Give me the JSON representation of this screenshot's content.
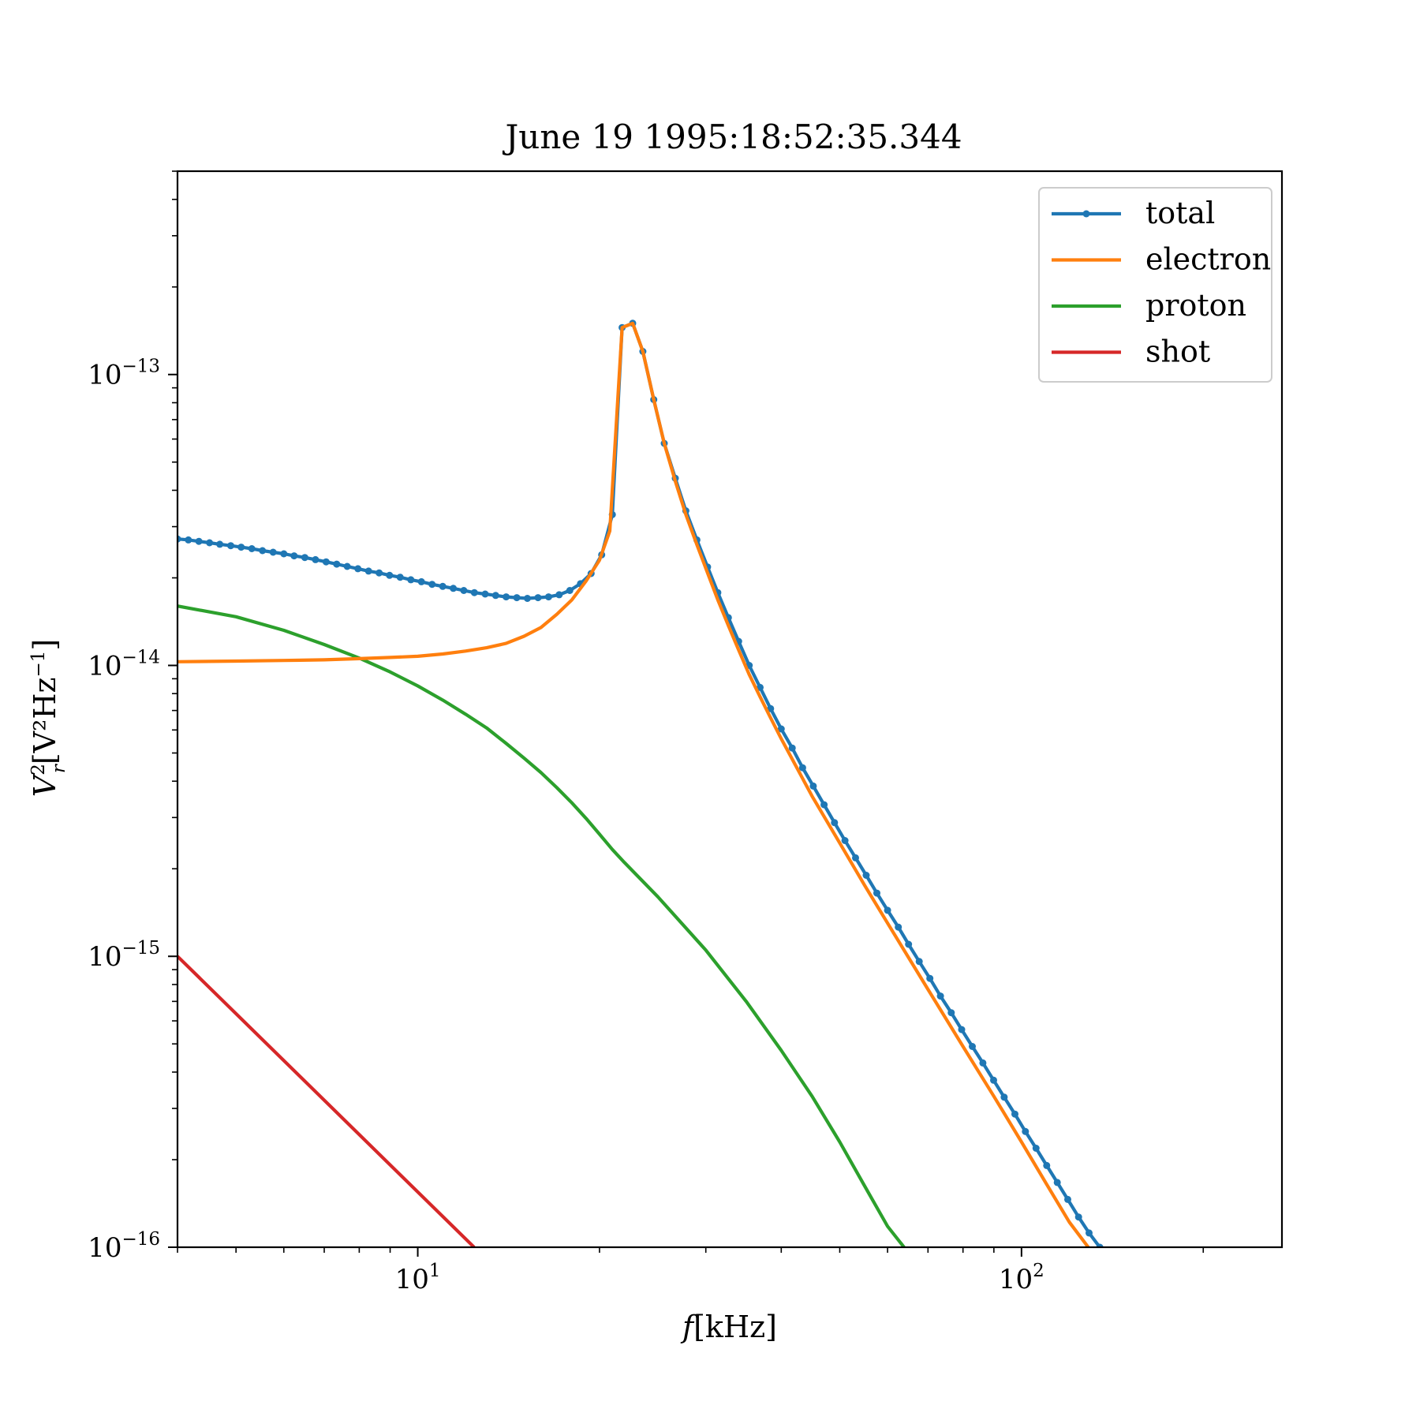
{
  "chart_data": {
    "type": "line",
    "title": "June 19 1995:18:52:35.344",
    "xlabel": {
      "prefix": "f",
      "body": "[kHz]"
    },
    "ylabel": {
      "base": "V",
      "sub": "r",
      "sup": "2",
      "body": "[V²Hz",
      "body_sup": "−1",
      "close": "]"
    },
    "xscale": "log",
    "yscale": "log",
    "xlim": [
      4,
      270
    ],
    "ylim": [
      1e-16,
      5e-13
    ],
    "xticks": [
      {
        "value": 10,
        "base": "10",
        "exp": "1"
      },
      {
        "value": 100,
        "base": "10",
        "exp": "2"
      }
    ],
    "yticks": [
      {
        "value": 1e-16,
        "base": "10",
        "exp": "−16"
      },
      {
        "value": 1e-15,
        "base": "10",
        "exp": "−15"
      },
      {
        "value": 1e-14,
        "base": "10",
        "exp": "−14"
      },
      {
        "value": 1e-13,
        "base": "10",
        "exp": "−13"
      }
    ],
    "legend_position": "upper right",
    "grid": false,
    "series": [
      {
        "name": "total",
        "color": "#1f77b4",
        "marker": "dot",
        "points": [
          [
            4.0,
            2.72e-14
          ],
          [
            4.17,
            2.7e-14
          ],
          [
            4.34,
            2.67e-14
          ],
          [
            4.52,
            2.64e-14
          ],
          [
            4.7,
            2.61e-14
          ],
          [
            4.9,
            2.58e-14
          ],
          [
            5.1,
            2.55e-14
          ],
          [
            5.31,
            2.52e-14
          ],
          [
            5.53,
            2.48e-14
          ],
          [
            5.76,
            2.45e-14
          ],
          [
            6.0,
            2.42e-14
          ],
          [
            6.24,
            2.38e-14
          ],
          [
            6.5,
            2.35e-14
          ],
          [
            6.77,
            2.31e-14
          ],
          [
            7.05,
            2.27e-14
          ],
          [
            7.34,
            2.23e-14
          ],
          [
            7.64,
            2.19e-14
          ],
          [
            7.96,
            2.15e-14
          ],
          [
            8.29,
            2.11e-14
          ],
          [
            8.63,
            2.08e-14
          ],
          [
            8.98,
            2.04e-14
          ],
          [
            9.35,
            2.01e-14
          ],
          [
            9.74,
            1.97e-14
          ],
          [
            10.14,
            1.94e-14
          ],
          [
            10.56,
            1.9e-14
          ],
          [
            11.0,
            1.87e-14
          ],
          [
            11.45,
            1.84e-14
          ],
          [
            11.92,
            1.81e-14
          ],
          [
            12.41,
            1.78e-14
          ],
          [
            12.93,
            1.76e-14
          ],
          [
            13.46,
            1.74e-14
          ],
          [
            14.01,
            1.72e-14
          ],
          [
            14.59,
            1.71e-14
          ],
          [
            15.19,
            1.7e-14
          ],
          [
            15.82,
            1.71e-14
          ],
          [
            16.47,
            1.72e-14
          ],
          [
            17.15,
            1.75e-14
          ],
          [
            17.86,
            1.81e-14
          ],
          [
            18.6,
            1.91e-14
          ],
          [
            19.37,
            2.07e-14
          ],
          [
            20.17,
            2.4e-14
          ],
          [
            21.0,
            3.3e-14
          ],
          [
            21.8,
            1.45e-13
          ],
          [
            22.7,
            1.5e-13
          ],
          [
            23.6,
            1.2e-13
          ],
          [
            24.6,
            8.2e-14
          ],
          [
            25.6,
            5.8e-14
          ],
          [
            26.7,
            4.4e-14
          ],
          [
            27.8,
            3.4e-14
          ],
          [
            29.0,
            2.7e-14
          ],
          [
            30.2,
            2.18e-14
          ],
          [
            31.4,
            1.78e-14
          ],
          [
            32.7,
            1.46e-14
          ],
          [
            34.0,
            1.21e-14
          ],
          [
            35.4,
            1e-14
          ],
          [
            36.9,
            8.4e-15
          ],
          [
            38.4,
            7.1e-15
          ],
          [
            40.0,
            6.05e-15
          ],
          [
            41.7,
            5.2e-15
          ],
          [
            43.4,
            4.45e-15
          ],
          [
            45.2,
            3.85e-15
          ],
          [
            47.1,
            3.32e-15
          ],
          [
            49.0,
            2.88e-15
          ],
          [
            51.0,
            2.5e-15
          ],
          [
            53.1,
            2.18e-15
          ],
          [
            55.3,
            1.9e-15
          ],
          [
            57.6,
            1.65e-15
          ],
          [
            60.0,
            1.44e-15
          ],
          [
            62.5,
            1.26e-15
          ],
          [
            65.0,
            1.1e-15
          ],
          [
            67.7,
            9.6e-16
          ],
          [
            70.5,
            8.4e-16
          ],
          [
            73.4,
            7.3e-16
          ],
          [
            76.5,
            6.4e-16
          ],
          [
            79.6,
            5.6e-16
          ],
          [
            82.9,
            4.9e-16
          ],
          [
            86.3,
            4.3e-16
          ],
          [
            89.9,
            3.75e-16
          ],
          [
            93.6,
            3.28e-16
          ],
          [
            97.5,
            2.87e-16
          ],
          [
            101.5,
            2.5e-16
          ],
          [
            105.7,
            2.19e-16
          ],
          [
            110.1,
            1.91e-16
          ],
          [
            114.6,
            1.67e-16
          ],
          [
            119.3,
            1.46e-16
          ],
          [
            124.3,
            1.27e-16
          ],
          [
            129.4,
            1.12e-16
          ],
          [
            134.8,
            1e-16
          ]
        ]
      },
      {
        "name": "electron",
        "color": "#ff7f0e",
        "marker": "none",
        "points": [
          [
            4.0,
            1.03e-14
          ],
          [
            5.0,
            1.035e-14
          ],
          [
            6.0,
            1.04e-14
          ],
          [
            7.0,
            1.045e-14
          ],
          [
            8.0,
            1.055e-14
          ],
          [
            9.0,
            1.065e-14
          ],
          [
            10.0,
            1.075e-14
          ],
          [
            11.0,
            1.095e-14
          ],
          [
            12.0,
            1.12e-14
          ],
          [
            13.0,
            1.15e-14
          ],
          [
            14.0,
            1.19e-14
          ],
          [
            15.0,
            1.26e-14
          ],
          [
            16.0,
            1.35e-14
          ],
          [
            17.0,
            1.5e-14
          ],
          [
            18.0,
            1.68e-14
          ],
          [
            19.0,
            1.95e-14
          ],
          [
            20.0,
            2.3e-14
          ],
          [
            20.8,
            2.9e-14
          ],
          [
            21.8,
            1.45e-13
          ],
          [
            22.7,
            1.5e-13
          ],
          [
            23.6,
            1.2e-13
          ],
          [
            24.6,
            8.2e-14
          ],
          [
            25.6,
            5.8e-14
          ],
          [
            26.7,
            4.3e-14
          ],
          [
            27.8,
            3.3e-14
          ],
          [
            29.0,
            2.6e-14
          ],
          [
            30.2,
            2.08e-14
          ],
          [
            31.4,
            1.68e-14
          ],
          [
            32.7,
            1.37e-14
          ],
          [
            34.0,
            1.13e-14
          ],
          [
            35.4,
            9.3e-15
          ],
          [
            36.9,
            7.8e-15
          ],
          [
            38.4,
            6.6e-15
          ],
          [
            40.0,
            5.6e-15
          ],
          [
            45.0,
            3.55e-15
          ],
          [
            50.0,
            2.45e-15
          ],
          [
            55.0,
            1.75e-15
          ],
          [
            60.0,
            1.3e-15
          ],
          [
            70.0,
            7.7e-16
          ],
          [
            80.0,
            4.9e-16
          ],
          [
            90.0,
            3.3e-16
          ],
          [
            100.0,
            2.3e-16
          ],
          [
            110.0,
            1.65e-16
          ],
          [
            120.0,
            1.22e-16
          ],
          [
            129.0,
            1e-16
          ]
        ]
      },
      {
        "name": "proton",
        "color": "#2ca02c",
        "marker": "none",
        "points": [
          [
            4.0,
            1.6e-14
          ],
          [
            5.0,
            1.47e-14
          ],
          [
            6.0,
            1.32e-14
          ],
          [
            7.0,
            1.18e-14
          ],
          [
            8.0,
            1.06e-14
          ],
          [
            9.0,
            9.5e-15
          ],
          [
            10.0,
            8.5e-15
          ],
          [
            11.0,
            7.6e-15
          ],
          [
            12.0,
            6.8e-15
          ],
          [
            13.0,
            6.1e-15
          ],
          [
            14.0,
            5.4e-15
          ],
          [
            15.0,
            4.8e-15
          ],
          [
            16.0,
            4.28e-15
          ],
          [
            17.0,
            3.8e-15
          ],
          [
            18.0,
            3.37e-15
          ],
          [
            19.0,
            2.98e-15
          ],
          [
            20.0,
            2.63e-15
          ],
          [
            21.0,
            2.33e-15
          ],
          [
            22.0,
            2.1e-15
          ],
          [
            25.0,
            1.6e-15
          ],
          [
            30.0,
            1.05e-15
          ],
          [
            35.0,
            7e-16
          ],
          [
            40.0,
            4.75e-16
          ],
          [
            45.0,
            3.3e-16
          ],
          [
            50.0,
            2.3e-16
          ],
          [
            55.0,
            1.62e-16
          ],
          [
            60.0,
            1.18e-16
          ],
          [
            63.9,
            1e-16
          ]
        ]
      },
      {
        "name": "shot",
        "color": "#d62728",
        "marker": "none",
        "points": [
          [
            4.0,
            1e-15
          ],
          [
            12.4,
            1e-16
          ]
        ]
      }
    ]
  }
}
